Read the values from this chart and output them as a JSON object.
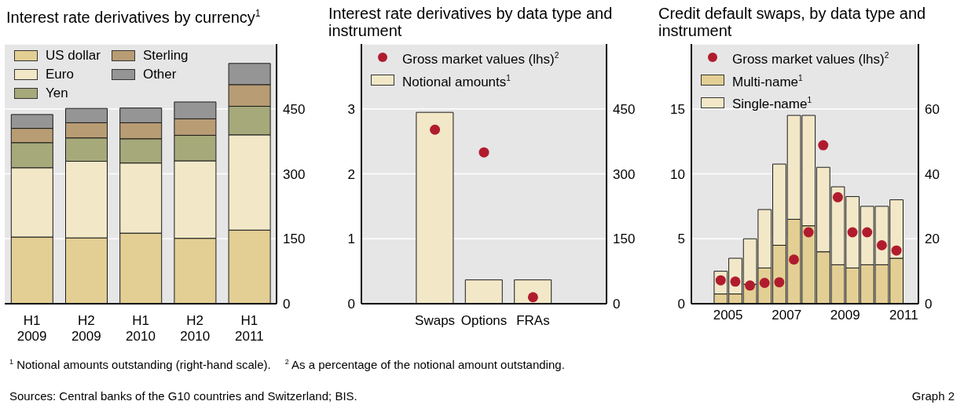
{
  "chart_data": [
    {
      "type": "bar",
      "title": "Interest rate derivatives by currency$^{1}$",
      "categories": [
        "H1 2009",
        "H2 2009",
        "H1 2010",
        "H2 2010",
        "H1 2011"
      ],
      "stacked": true,
      "legend": "top left",
      "grid": "y",
      "y2lim": [
        0,
        600
      ],
      "y2ticks": [
        0,
        150,
        300,
        450
      ],
      "series": [
        {
          "name": "US dollar",
          "color": "#e3cf94",
          "axis": "y2",
          "values": [
            154,
            152,
            163,
            151,
            170
          ]
        },
        {
          "name": "Euro",
          "color": "#f2e8c8",
          "axis": "y2",
          "values": [
            160,
            177,
            162,
            179,
            220
          ]
        },
        {
          "name": "Yen",
          "color": "#a6a97a",
          "axis": "y2",
          "values": [
            58,
            54,
            56,
            59,
            66
          ]
        },
        {
          "name": "Sterling",
          "color": "#b89c74",
          "axis": "y2",
          "values": [
            33,
            35,
            37,
            38,
            50
          ]
        },
        {
          "name": "Other",
          "color": "#959595",
          "axis": "y2",
          "values": [
            32,
            33,
            34,
            39,
            49
          ]
        }
      ],
      "annotations": [
        "$^{1}$ Notional amounts outstanding (right-hand scale).",
        "$^{2}$ As a percentage of the notional amount outstanding.",
        "Sources: Central banks of the G10 countries and Switzerland; BIS.",
        "Graph 2"
      ]
    },
    {
      "type": "bar",
      "title": "Interest rate derivatives by data type and instrument",
      "categories": [
        null,
        "Swaps",
        "Options",
        "FRAs",
        null
      ],
      "legend": "top left",
      "grid": "y",
      "marker": "circle",
      "ylim": [
        0,
        4
      ],
      "yticks": [
        0,
        1,
        2,
        3
      ],
      "y2lim": [
        0,
        600
      ],
      "y2ticks": [
        0,
        150,
        300,
        450
      ],
      "series": [
        {
          "name": "Gross market values (lhs)$^{2}$",
          "type": "scatter",
          "color": "#b01c2e",
          "values": [
            null,
            2.68,
            2.33,
            0.1,
            null
          ]
        },
        {
          "name": "Notional amounts$^{1}$",
          "color": "#f2e8c8",
          "axis": "y2",
          "values": [
            null,
            442,
            55,
            55,
            null
          ]
        }
      ]
    },
    {
      "type": "bar",
      "title": "Credit default swaps, by data type and instrument",
      "x": [
        2005.25,
        2005.75,
        2006.25,
        2006.75,
        2007.25,
        2007.75,
        2008.25,
        2008.75,
        2009.25,
        2009.75,
        2010.25,
        2010.75,
        2011.25
      ],
      "xlim": [
        2004.25,
        2012
      ],
      "xticks": [
        {
          "value": 2005.5,
          "label": "2005"
        },
        {
          "value": 2007.5,
          "label": "2007"
        },
        {
          "value": 2009.5,
          "label": "2009"
        },
        {
          "value": 2011.5,
          "label": "2011"
        }
      ],
      "stacked": true,
      "legend": "top left",
      "grid": "y",
      "marker": "circle",
      "ylim": [
        0,
        20
      ],
      "yticks": [
        0,
        5,
        10,
        15
      ],
      "y2lim": [
        0,
        80
      ],
      "y2ticks": [
        0,
        20,
        40,
        60
      ],
      "series": [
        {
          "name": "Gross market values (lhs)$^{2}$",
          "type": "scatter",
          "color": "#b01c2e",
          "values": [
            1.8,
            1.7,
            1.4,
            1.6,
            1.65,
            3.4,
            5.5,
            12.2,
            8.2,
            5.5,
            5.5,
            4.5,
            4.1
          ]
        },
        {
          "name": "Multi-name$^{1}$",
          "type": "bar",
          "color": "#e3cf94",
          "axis": "y2",
          "values": [
            3,
            3,
            6,
            11,
            18,
            26,
            24,
            16,
            12,
            11,
            12,
            12,
            14
          ]
        },
        {
          "name": "Single-name$^{1}$",
          "type": "bar",
          "color": "#f2e8c8",
          "axis": "y2",
          "values": [
            7,
            11,
            14,
            18,
            25,
            32,
            34,
            26,
            24,
            22,
            18,
            18,
            18
          ]
        }
      ]
    }
  ]
}
